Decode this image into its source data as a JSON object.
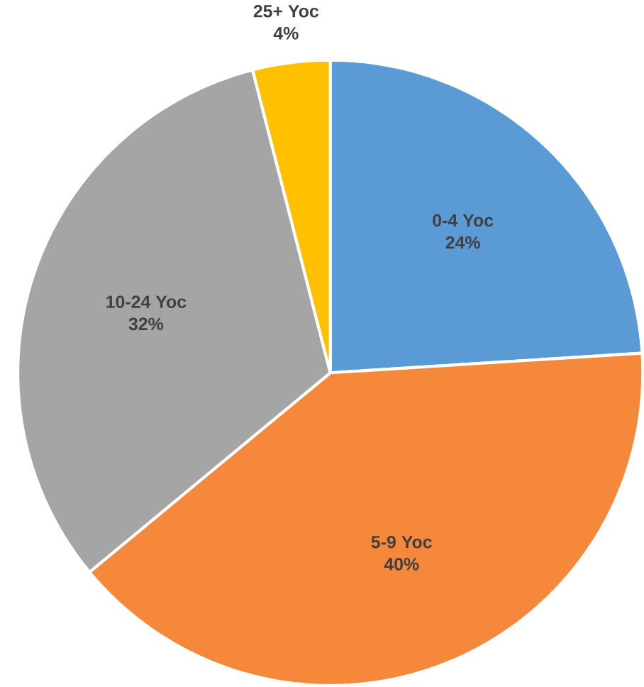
{
  "chart_data": {
    "type": "pie",
    "categories": [
      "0-4 Yoc",
      "5-9 Yoc",
      "10-24 Yoc",
      "25+ Yoc"
    ],
    "values": [
      24,
      40,
      32,
      4
    ],
    "colors": [
      "#5b9bd5",
      "#f5883a",
      "#a5a5a5",
      "#ffc000"
    ],
    "value_labels": [
      "24%",
      "40%",
      "32%",
      "4%"
    ]
  }
}
